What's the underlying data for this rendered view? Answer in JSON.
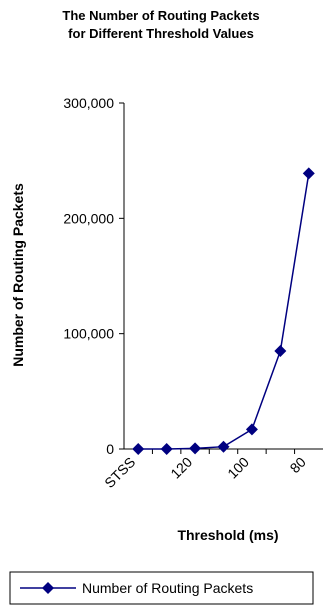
{
  "chart_data": {
    "type": "line",
    "title": [
      "The Number of Routing Packets",
      "for Different Threshold Values"
    ],
    "x_label": "Threshold (ms)",
    "y_label": "Number of Routing Packets",
    "categories": [
      "STSS",
      null,
      "120",
      null,
      "100",
      null,
      "80"
    ],
    "series": [
      {
        "name": "Number of Routing Packets",
        "color": "#000080",
        "values": [
          0,
          0,
          500,
          2000,
          17000,
          85000,
          239000
        ]
      }
    ],
    "ylim": [
      0,
      300000
    ],
    "yticks": [
      0,
      {
        "value": 100000,
        "label": "100,000"
      },
      {
        "value": 200000,
        "label": "200,000"
      },
      {
        "value": 300000,
        "label": "300,000"
      }
    ],
    "grid": false,
    "legend": "bottom"
  }
}
